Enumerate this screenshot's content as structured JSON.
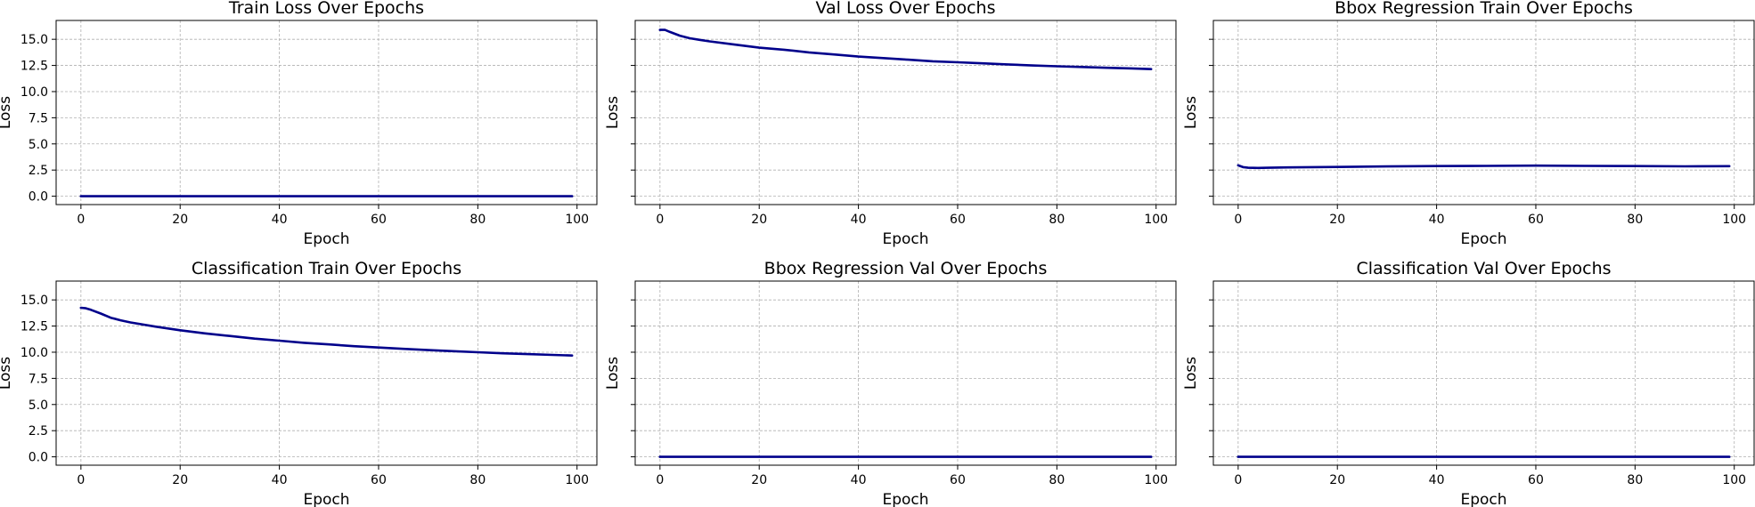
{
  "figure": {
    "line_color": "#00008b",
    "grid": true
  },
  "chart_data": [
    {
      "type": "line",
      "title": "Train Loss Over Epochs",
      "xlabel": "Epoch",
      "ylabel": "Loss",
      "xlim": [
        -5,
        104
      ],
      "ylim": [
        -0.8,
        16.8
      ],
      "xticks": [
        0,
        20,
        40,
        60,
        80,
        100
      ],
      "yticks": [
        0.0,
        2.5,
        5.0,
        7.5,
        10.0,
        12.5,
        15.0
      ],
      "ytick_labels_visible": true,
      "series": [
        {
          "x": [
            0,
            10,
            20,
            30,
            40,
            50,
            60,
            70,
            80,
            90,
            99
          ],
          "y": [
            0,
            0,
            0,
            0,
            0,
            0,
            0,
            0,
            0,
            0,
            0
          ]
        }
      ]
    },
    {
      "type": "line",
      "title": "Val Loss Over Epochs",
      "xlabel": "Epoch",
      "ylabel": "Loss",
      "xlim": [
        -5,
        104
      ],
      "ylim": [
        -0.8,
        16.8
      ],
      "xticks": [
        0,
        20,
        40,
        60,
        80,
        100
      ],
      "yticks": [
        0.0,
        2.5,
        5.0,
        7.5,
        10.0,
        12.5,
        15.0
      ],
      "ytick_labels_visible": false,
      "series": [
        {
          "x": [
            0,
            1,
            2,
            4,
            6,
            8,
            10,
            15,
            20,
            25,
            30,
            35,
            40,
            45,
            50,
            55,
            60,
            65,
            70,
            75,
            80,
            85,
            90,
            95,
            99
          ],
          "y": [
            15.9,
            15.9,
            15.7,
            15.35,
            15.1,
            14.95,
            14.8,
            14.5,
            14.2,
            14.0,
            13.75,
            13.55,
            13.35,
            13.2,
            13.05,
            12.9,
            12.8,
            12.7,
            12.6,
            12.5,
            12.42,
            12.35,
            12.28,
            12.22,
            12.15
          ]
        }
      ]
    },
    {
      "type": "line",
      "title": "Bbox Regression Train Over Epochs",
      "xlabel": "Epoch",
      "ylabel": "Loss",
      "xlim": [
        -5,
        104
      ],
      "ylim": [
        -0.8,
        16.8
      ],
      "xticks": [
        0,
        20,
        40,
        60,
        80,
        100
      ],
      "yticks": [
        0.0,
        2.5,
        5.0,
        7.5,
        10.0,
        12.5,
        15.0
      ],
      "ytick_labels_visible": false,
      "series": [
        {
          "x": [
            0,
            1,
            2,
            4,
            6,
            10,
            20,
            30,
            40,
            50,
            60,
            70,
            80,
            90,
            99
          ],
          "y": [
            2.95,
            2.78,
            2.72,
            2.7,
            2.72,
            2.75,
            2.8,
            2.85,
            2.88,
            2.9,
            2.92,
            2.9,
            2.88,
            2.86,
            2.87
          ]
        }
      ]
    },
    {
      "type": "line",
      "title": "Classification Train Over Epochs",
      "xlabel": "Epoch",
      "ylabel": "Loss",
      "xlim": [
        -5,
        104
      ],
      "ylim": [
        -0.8,
        16.8
      ],
      "xticks": [
        0,
        20,
        40,
        60,
        80,
        100
      ],
      "yticks": [
        0.0,
        2.5,
        5.0,
        7.5,
        10.0,
        12.5,
        15.0
      ],
      "ytick_labels_visible": true,
      "series": [
        {
          "x": [
            0,
            1,
            2,
            4,
            6,
            8,
            10,
            15,
            20,
            25,
            30,
            35,
            40,
            45,
            50,
            55,
            60,
            65,
            70,
            75,
            80,
            85,
            90,
            95,
            99
          ],
          "y": [
            14.25,
            14.2,
            14.05,
            13.7,
            13.3,
            13.05,
            12.85,
            12.45,
            12.1,
            11.8,
            11.55,
            11.3,
            11.1,
            10.9,
            10.75,
            10.58,
            10.45,
            10.32,
            10.2,
            10.1,
            10.0,
            9.9,
            9.82,
            9.74,
            9.68
          ]
        }
      ]
    },
    {
      "type": "line",
      "title": "Bbox Regression Val Over Epochs",
      "xlabel": "Epoch",
      "ylabel": "Loss",
      "xlim": [
        -5,
        104
      ],
      "ylim": [
        -0.8,
        16.8
      ],
      "xticks": [
        0,
        20,
        40,
        60,
        80,
        100
      ],
      "yticks": [
        0.0,
        2.5,
        5.0,
        7.5,
        10.0,
        12.5,
        15.0
      ],
      "ytick_labels_visible": false,
      "series": [
        {
          "x": [
            0,
            10,
            20,
            30,
            40,
            50,
            60,
            70,
            80,
            90,
            99
          ],
          "y": [
            0,
            0,
            0,
            0,
            0,
            0,
            0,
            0,
            0,
            0,
            0
          ]
        }
      ]
    },
    {
      "type": "line",
      "title": "Classification Val Over Epochs",
      "xlabel": "Epoch",
      "ylabel": "Loss",
      "xlim": [
        -5,
        104
      ],
      "ylim": [
        -0.8,
        16.8
      ],
      "xticks": [
        0,
        20,
        40,
        60,
        80,
        100
      ],
      "yticks": [
        0.0,
        2.5,
        5.0,
        7.5,
        10.0,
        12.5,
        15.0
      ],
      "ytick_labels_visible": false,
      "series": [
        {
          "x": [
            0,
            10,
            20,
            30,
            40,
            50,
            60,
            70,
            80,
            90,
            99
          ],
          "y": [
            0,
            0,
            0,
            0,
            0,
            0,
            0,
            0,
            0,
            0,
            0
          ]
        }
      ]
    }
  ]
}
